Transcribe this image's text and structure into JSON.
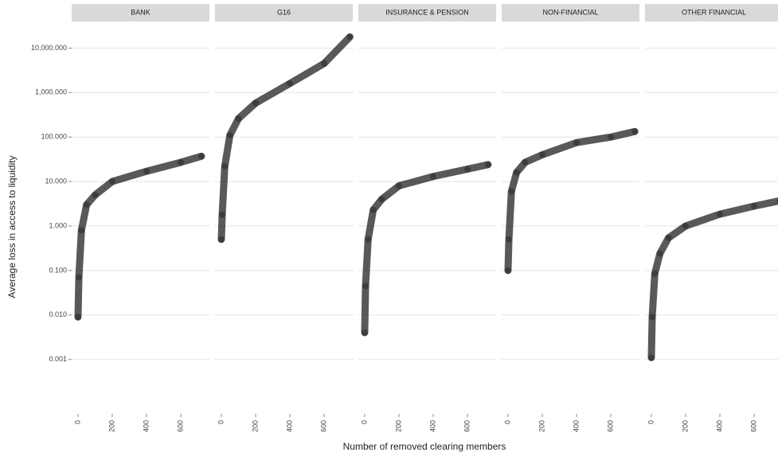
{
  "chart_data": {
    "type": "scatter",
    "x_label": "Number of removed clearing members",
    "y_label": "Average loss in access to liquidity",
    "log_y": true,
    "grid": true,
    "color": "#222222",
    "xlim": [
      -37,
      767
    ],
    "xticks": [
      0,
      200,
      400,
      600
    ],
    "ylim": [
      6e-05,
      35000
    ],
    "yticks": [
      {
        "value": 0.001,
        "label": "0.001"
      },
      {
        "value": 0.01,
        "label": "0.010"
      },
      {
        "value": 0.1,
        "label": "0.100"
      },
      {
        "value": 1,
        "label": "1.000"
      },
      {
        "value": 10,
        "label": "10.000"
      },
      {
        "value": 100,
        "label": "100.000"
      },
      {
        "value": 1000,
        "label": "1,000.000"
      },
      {
        "value": 10000,
        "label": "10,000.000"
      }
    ],
    "facets": [
      {
        "title": "BANK",
        "x": [
          0,
          5,
          20,
          50,
          100,
          200,
          400,
          600,
          720
        ],
        "values": [
          0.009,
          0.07,
          0.8,
          3,
          5,
          10,
          17,
          27,
          37
        ]
      },
      {
        "title": "G16",
        "x": [
          0,
          5,
          20,
          50,
          100,
          200,
          400,
          600,
          750
        ],
        "values": [
          0.5,
          1.8,
          22,
          110,
          260,
          580,
          1600,
          4500,
          17800
        ]
      },
      {
        "title": "INSURANCE & PENSION",
        "x": [
          0,
          5,
          20,
          50,
          100,
          200,
          400,
          600,
          720
        ],
        "values": [
          0.004,
          0.045,
          0.5,
          2.3,
          4,
          8,
          13,
          19,
          24
        ]
      },
      {
        "title": "NON-FINANCIAL",
        "x": [
          0,
          5,
          20,
          50,
          100,
          200,
          400,
          600,
          740
        ],
        "values": [
          0.1,
          0.5,
          6,
          16,
          27,
          40,
          75,
          100,
          133
        ]
      },
      {
        "title": "OTHER FINANCIAL",
        "x": [
          0,
          5,
          20,
          50,
          100,
          200,
          400,
          600,
          750
        ],
        "values": [
          0.0011,
          0.009,
          0.085,
          0.24,
          0.54,
          1,
          1.85,
          2.8,
          3.7
        ]
      }
    ]
  }
}
